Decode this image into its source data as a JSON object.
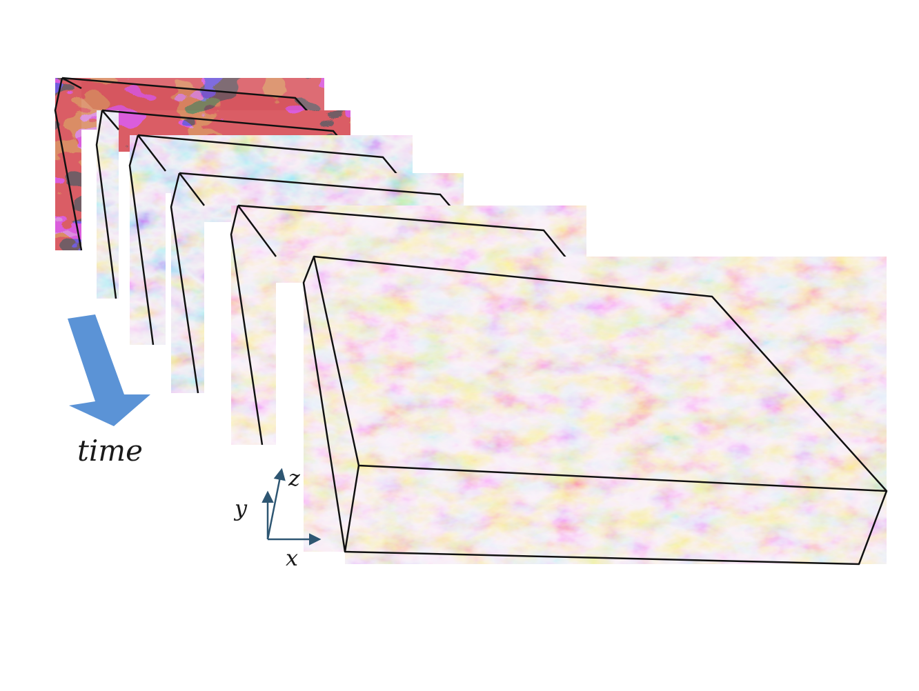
{
  "time_label": "time",
  "axes": {
    "x": "x",
    "y": "y",
    "z": "z"
  },
  "snapshots_shown": 6,
  "colors": {
    "warm_strong": "#b2182b",
    "warm_light": "#f4a582",
    "neutral": "#dde3ea",
    "cool_light": "#92c5de",
    "cool_strong": "#2c45b8",
    "time_arrow": "#5b93d6",
    "axis_arrow": "#2e5672",
    "slab_edge": "#111111"
  }
}
